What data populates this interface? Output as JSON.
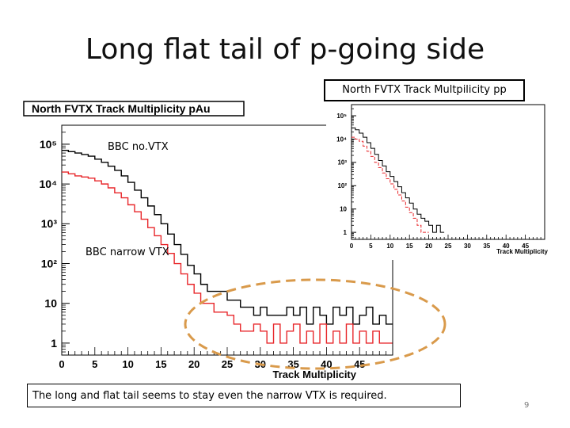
{
  "slide": {
    "title": "Long flat tail of p-going side",
    "label_nobvtx": "BBC no.VTX",
    "label_narrow": "BBC narrow VTX",
    "inset_label": "North FVTX Track Multpilicity pp",
    "caption": "The long and flat tail seems to stay even the narrow VTX is required.",
    "page_number": "9",
    "colors": {
      "black_series": "#000000",
      "red_series": "#e8262a",
      "ellipse": "#d99a4b"
    }
  },
  "chart_data": [
    {
      "type": "line",
      "title": "North FVTX Track Multiplicity pAu",
      "xlabel": "Track Multiplicity",
      "ylabel": "",
      "xlim": [
        0,
        50
      ],
      "ylim": [
        0.5,
        300000
      ],
      "yscale": "log",
      "xticks": [
        0,
        5,
        10,
        15,
        20,
        25,
        30,
        35,
        40,
        45
      ],
      "yticks": [
        {
          "value": 1,
          "label": "1"
        },
        {
          "value": 10,
          "label": "10"
        },
        {
          "value": 100,
          "label": "10²"
        },
        {
          "value": 1000,
          "label": "10³"
        },
        {
          "value": 10000,
          "label": "10⁴"
        },
        {
          "value": 100000,
          "label": "10⁵"
        }
      ],
      "x": [
        0,
        1,
        2,
        3,
        4,
        5,
        6,
        7,
        8,
        9,
        10,
        11,
        12,
        13,
        14,
        15,
        16,
        17,
        18,
        19,
        20,
        21,
        22,
        23,
        24,
        25,
        26,
        27,
        28,
        29,
        30,
        31,
        32,
        33,
        34,
        35,
        36,
        37,
        38,
        39,
        40,
        41,
        42,
        43,
        44,
        45,
        46,
        47,
        48,
        49
      ],
      "series": [
        {
          "values": [
            70000,
            65000,
            60000,
            55000,
            50000,
            42000,
            35000,
            28000,
            22000,
            16000,
            11000,
            7000,
            4500,
            2800,
            1700,
            1000,
            550,
            300,
            170,
            90,
            55,
            30,
            20,
            20,
            20,
            12,
            12,
            8,
            8,
            5,
            8,
            5,
            5,
            5,
            8,
            5,
            8,
            3,
            8,
            5,
            3,
            8,
            5,
            8,
            3,
            5,
            8,
            3,
            5,
            3
          ],
          "color": "#000000"
        },
        {
          "values": [
            20000,
            18000,
            16000,
            15000,
            14000,
            12000,
            10000,
            8000,
            6000,
            4500,
            3000,
            2000,
            1300,
            800,
            500,
            300,
            180,
            100,
            55,
            30,
            18,
            10,
            10,
            6,
            6,
            5,
            3,
            2,
            2,
            3,
            2,
            1,
            3,
            1,
            2,
            3,
            1,
            2,
            1,
            3,
            1,
            2,
            1,
            3,
            1,
            2,
            1,
            2,
            1,
            1
          ],
          "color": "#e8262a"
        }
      ]
    },
    {
      "type": "line",
      "title": "",
      "xlabel": "Track Multiplicity",
      "ylabel": "",
      "xlim": [
        0,
        50
      ],
      "ylim": [
        0.5,
        300000
      ],
      "yscale": "log",
      "xticks": [
        0,
        5,
        10,
        15,
        20,
        25,
        30,
        35,
        40,
        45
      ],
      "yticks": [
        {
          "value": 1,
          "label": "1"
        },
        {
          "value": 10,
          "label": "10"
        },
        {
          "value": 100,
          "label": "10²"
        },
        {
          "value": 1000,
          "label": "10³"
        },
        {
          "value": 10000,
          "label": "10⁴"
        },
        {
          "value": 100000,
          "label": "10⁵"
        }
      ],
      "x": [
        0,
        1,
        2,
        3,
        4,
        5,
        6,
        7,
        8,
        9,
        10,
        11,
        12,
        13,
        14,
        15,
        16,
        17,
        18,
        19,
        20,
        21,
        22,
        23,
        24,
        25,
        26,
        27,
        28,
        29
      ],
      "series": [
        {
          "values": [
            30000,
            25000,
            18000,
            12000,
            7000,
            4000,
            2200,
            1200,
            700,
            400,
            250,
            150,
            90,
            50,
            30,
            18,
            10,
            6,
            4,
            3,
            2,
            1,
            2,
            1,
            0,
            0,
            0,
            0,
            0,
            0
          ],
          "color": "#000000"
        },
        {
          "values": [
            12000,
            10000,
            8000,
            5000,
            3000,
            1800,
            1000,
            600,
            350,
            200,
            120,
            70,
            40,
            22,
            12,
            7,
            4,
            2,
            1,
            1,
            0,
            0,
            0,
            0,
            0,
            0,
            0,
            0,
            0,
            0
          ],
          "color": "#e8262a"
        }
      ]
    }
  ]
}
